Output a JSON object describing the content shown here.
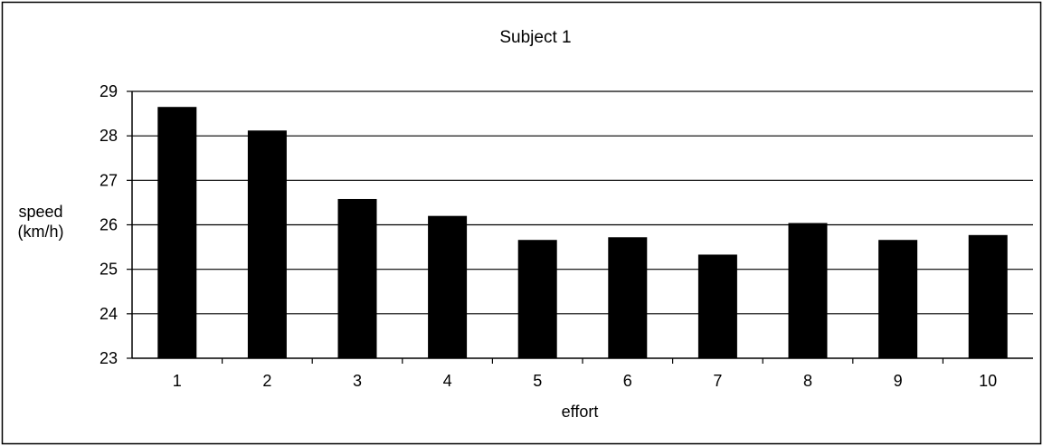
{
  "chart_data": {
    "type": "bar",
    "title": "Subject 1",
    "xlabel": "effort",
    "ylabel_lines": [
      "speed",
      "(km/h)"
    ],
    "categories": [
      "1",
      "2",
      "3",
      "4",
      "5",
      "6",
      "7",
      "8",
      "9",
      "10"
    ],
    "values": [
      28.65,
      28.12,
      26.58,
      26.2,
      25.66,
      25.72,
      25.33,
      26.04,
      25.66,
      25.77
    ],
    "ylim": [
      23,
      29
    ],
    "yticks": [
      "23",
      "24",
      "25",
      "26",
      "27",
      "28",
      "29"
    ],
    "grid": true,
    "legend": false,
    "colors": {
      "bar": "#000000",
      "grid": "#000000",
      "background": "#ffffff"
    }
  }
}
